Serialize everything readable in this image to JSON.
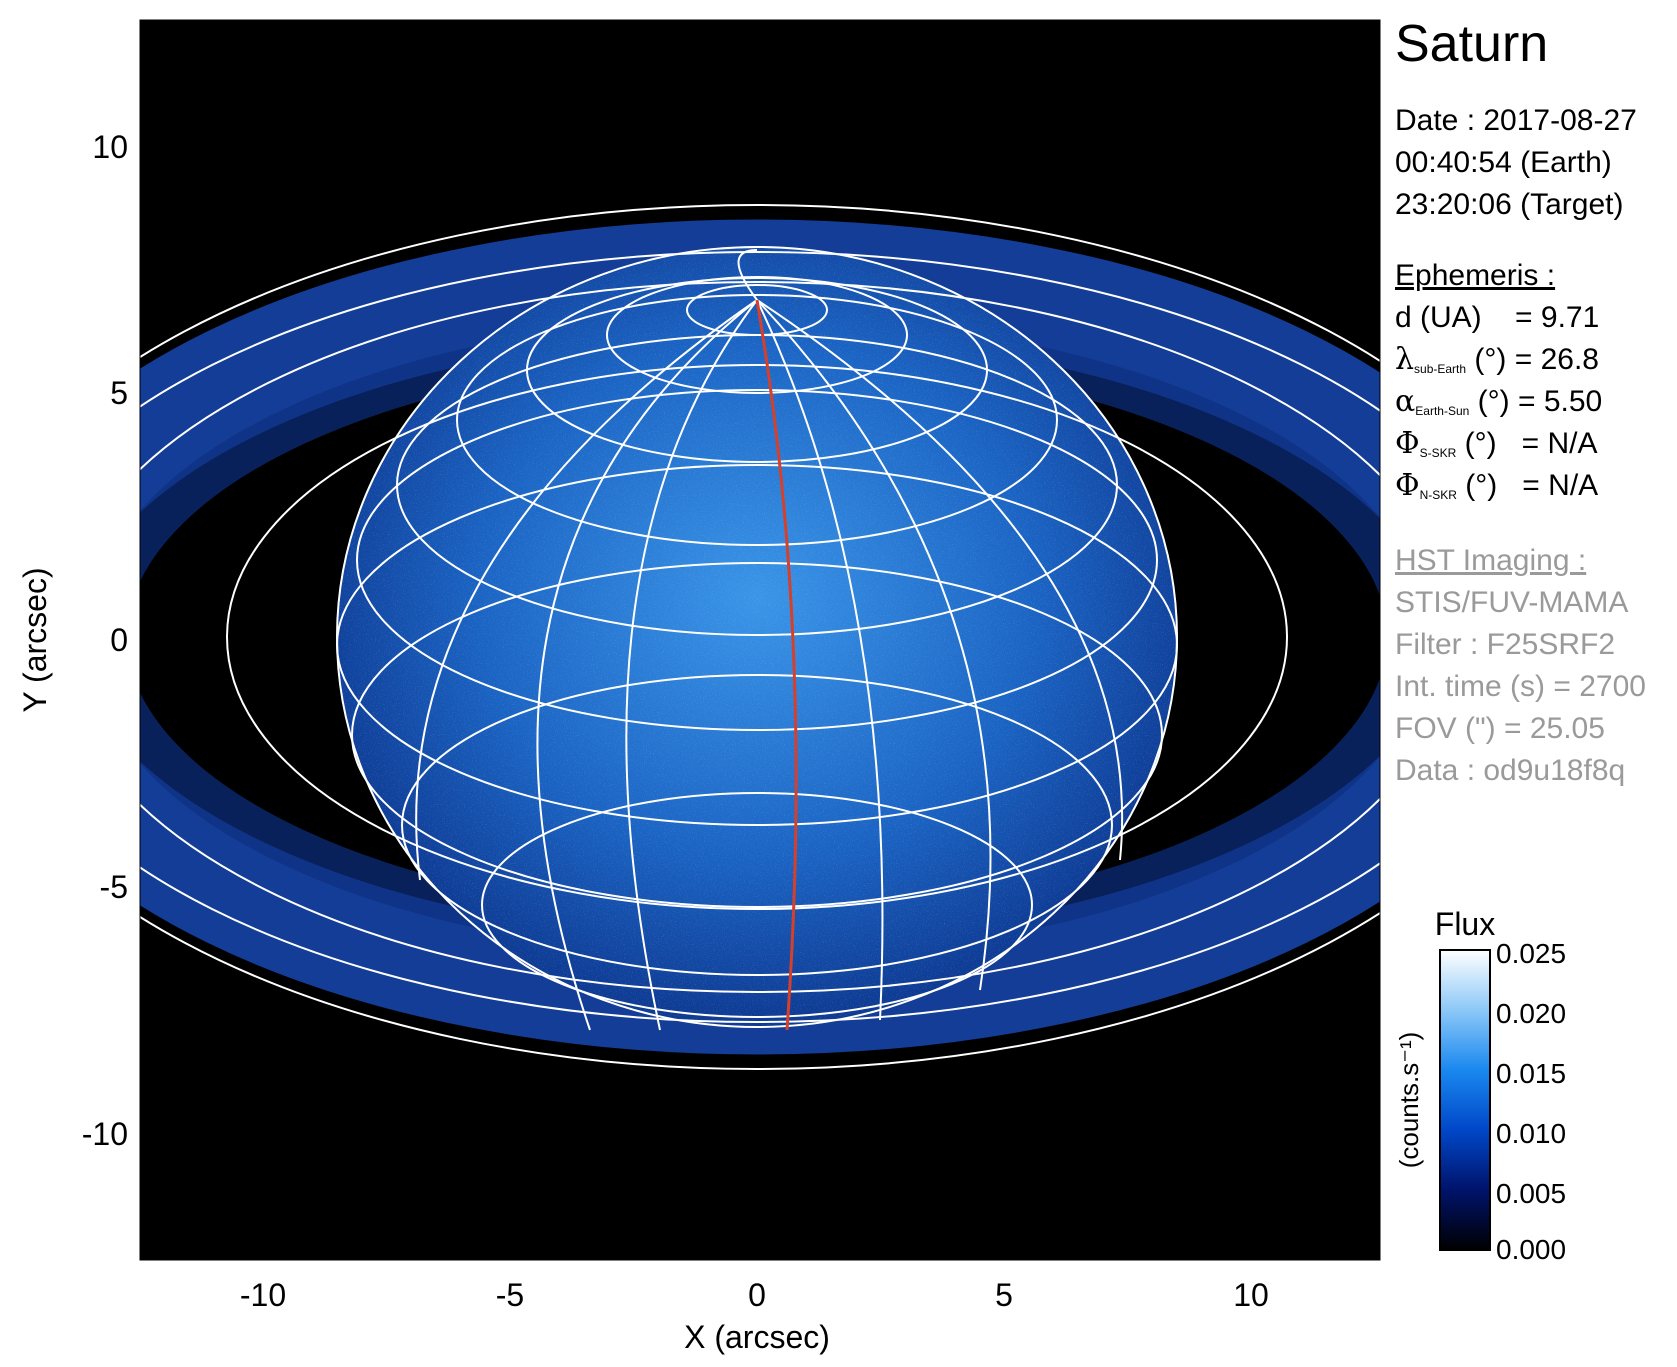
{
  "figure": {
    "title": "Saturn",
    "date_line": "Date : 2017-08-27",
    "earth_time": "00:40:54 (Earth)",
    "target_time": "23:20:06 (Target)",
    "ephemeris": {
      "header": "Ephemeris :",
      "distance": {
        "label": "d (UA)",
        "value": "= 9.71"
      },
      "sub_earth_lat": {
        "symbol": "λ",
        "subscript": "sub-Earth",
        "unit": "(°)",
        "value": "= 26.8"
      },
      "phase_angle": {
        "symbol": "α",
        "subscript": "Earth-Sun",
        "unit": "(°)",
        "value": "= 5.50"
      },
      "s_skr": {
        "symbol": "Φ",
        "subscript": "S-SKR",
        "unit": "(°)",
        "value": "= N/A"
      },
      "n_skr": {
        "symbol": "Φ",
        "subscript": "N-SKR",
        "unit": "(°)",
        "value": "= N/A"
      }
    },
    "instrument": {
      "header": "HST Imaging :",
      "camera": "STIS/FUV-MAMA",
      "filter": "Filter : F25SRF2",
      "int_time": "Int. time (s) = 2700",
      "fov": "FOV (\") = 25.05",
      "data_id": "Data : od9u18f8q"
    },
    "colorbar": {
      "title": "Flux",
      "label": "(counts.s⁻¹)",
      "ticks": [
        "0.000",
        "0.005",
        "0.010",
        "0.015",
        "0.020",
        "0.025"
      ],
      "range": [
        0,
        0.025
      ],
      "colors": [
        "#000000",
        "#00136b",
        "#0047c8",
        "#1a88ef",
        "#8cc8f7",
        "#ffffff"
      ]
    },
    "axes": {
      "xlabel": "X (arcsec)",
      "ylabel": "Y (arcsec)",
      "xlim": [
        -12.5,
        12.5
      ],
      "ylim": [
        -12.5,
        12.5
      ],
      "xticks": [
        "-10",
        "-5",
        "0",
        "5",
        "10"
      ],
      "yticks": [
        "-10",
        "-5",
        "0",
        "5",
        "10"
      ]
    },
    "colors": {
      "grid": "#ffffff",
      "meridian": "#d6402a",
      "background": "#000000"
    }
  }
}
